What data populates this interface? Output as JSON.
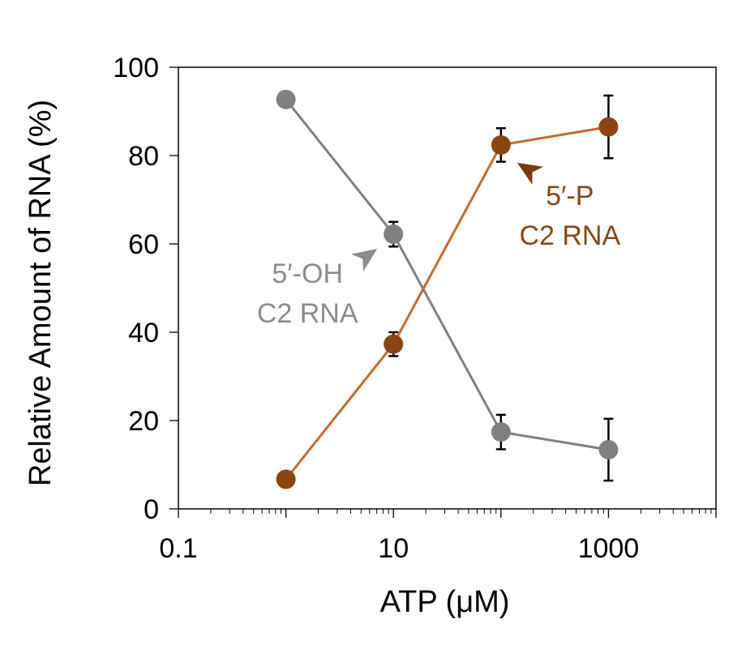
{
  "chart_data": {
    "type": "line",
    "xscale": "log",
    "xlabel": "ATP (μM)",
    "ylabel": "Relative Amount of RNA (%)",
    "xlim": [
      0.1,
      10000
    ],
    "ylim": [
      0,
      100
    ],
    "xticks": [
      0.1,
      10,
      1000
    ],
    "xtick_labels": [
      "0.1",
      "10",
      "1000"
    ],
    "yticks": [
      0,
      20,
      40,
      60,
      80,
      100
    ],
    "ytick_labels": [
      "0",
      "20",
      "40",
      "60",
      "80",
      "100"
    ],
    "grid": false,
    "series": [
      {
        "name": "5′-OH C2 RNA",
        "color": "#808080",
        "x": [
          1,
          10,
          100,
          1000
        ],
        "y": [
          92.7,
          62.2,
          17.4,
          13.4
        ],
        "err": [
          1.7,
          2.8,
          3.9,
          7.0
        ]
      },
      {
        "name": "5′-P C2 RNA",
        "color": "#8B4513",
        "line_color": "#C46A2E",
        "x": [
          1,
          10,
          100,
          1000
        ],
        "y": [
          6.7,
          37.3,
          82.4,
          86.5
        ],
        "err": [
          1.7,
          2.7,
          3.8,
          7.1
        ]
      }
    ],
    "annotations": [
      {
        "lines": [
          "5′-OH",
          "C2 RNA"
        ],
        "color": "#8C8C8C",
        "arrow_color": "#8C8C8C",
        "points_to_series": 0,
        "points_to_x": 10
      },
      {
        "lines": [
          "5′-P",
          "C2 RNA"
        ],
        "color": "#8B4513",
        "arrow_color": "#7A3A14",
        "points_to_series": 1,
        "points_to_x": 100
      }
    ]
  }
}
